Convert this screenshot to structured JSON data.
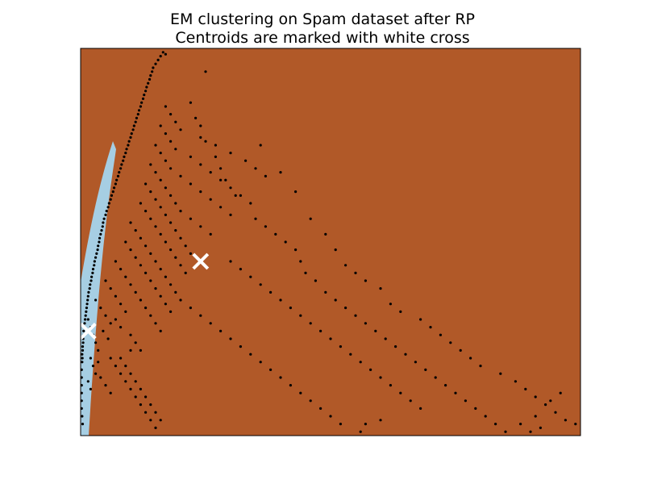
{
  "chart_data": {
    "type": "scatter",
    "title": "EM clustering on Spam dataset after RP",
    "subtitle": "Centroids are marked with white cross",
    "xlabel": "",
    "ylabel": "",
    "xlim": [
      0,
      100
    ],
    "ylim": [
      0,
      100
    ],
    "ticks": "none",
    "background_regions": [
      {
        "cluster": "Cluster 1",
        "color": "#b15928",
        "region": "background"
      },
      {
        "cluster": "Cluster 0",
        "color": "#a6cee3",
        "region": "thin band along left edge"
      }
    ],
    "point_color": "#000000",
    "centroid_color": "#ffffff",
    "centroids": [
      {
        "x": 1.5,
        "y": 27
      },
      {
        "x": 24,
        "y": 45
      }
    ],
    "points": [
      [
        16.5,
        99
      ],
      [
        17,
        98.5
      ],
      [
        15.5,
        97
      ],
      [
        14.5,
        95
      ],
      [
        14,
        93
      ],
      [
        13.5,
        91
      ],
      [
        13,
        89
      ],
      [
        12.5,
        87
      ],
      [
        12,
        85
      ],
      [
        11.5,
        83
      ],
      [
        11,
        81
      ],
      [
        10.5,
        79
      ],
      [
        10,
        77
      ],
      [
        9.5,
        75
      ],
      [
        9,
        73
      ],
      [
        8.5,
        71
      ],
      [
        8,
        69
      ],
      [
        7.5,
        67
      ],
      [
        7,
        65
      ],
      [
        6.5,
        63
      ],
      [
        6,
        61
      ],
      [
        5.5,
        59
      ],
      [
        5,
        57
      ],
      [
        4.5,
        55
      ],
      [
        4.2,
        53
      ],
      [
        3.8,
        51
      ],
      [
        3.5,
        49
      ],
      [
        3.2,
        47
      ],
      [
        2.8,
        45
      ],
      [
        2.5,
        43
      ],
      [
        2.2,
        41
      ],
      [
        1.9,
        39
      ],
      [
        1.6,
        37
      ],
      [
        1.4,
        35
      ],
      [
        1.2,
        33
      ],
      [
        1,
        31
      ],
      [
        0.8,
        29
      ],
      [
        0.6,
        27
      ],
      [
        0.5,
        25
      ],
      [
        0.4,
        23
      ],
      [
        0.3,
        21
      ],
      [
        0.3,
        19
      ],
      [
        0.2,
        17
      ],
      [
        0.2,
        15
      ],
      [
        0.2,
        13
      ],
      [
        0.2,
        11
      ],
      [
        0.2,
        9
      ],
      [
        0.2,
        7
      ],
      [
        0.3,
        5
      ],
      [
        0.4,
        3
      ],
      [
        16,
        98
      ],
      [
        15,
        96
      ],
      [
        14.3,
        94
      ],
      [
        13.8,
        92
      ],
      [
        13.2,
        90
      ],
      [
        12.7,
        88
      ],
      [
        12.2,
        86
      ],
      [
        11.7,
        84
      ],
      [
        11.2,
        82
      ],
      [
        10.7,
        80
      ],
      [
        10.2,
        78
      ],
      [
        9.7,
        76
      ],
      [
        9.2,
        74
      ],
      [
        8.7,
        72
      ],
      [
        8.2,
        70
      ],
      [
        7.7,
        68
      ],
      [
        7.2,
        66
      ],
      [
        6.7,
        64
      ],
      [
        6.2,
        62
      ],
      [
        5.7,
        60
      ],
      [
        5.2,
        58
      ],
      [
        4.7,
        56
      ],
      [
        4.4,
        54
      ],
      [
        4,
        52
      ],
      [
        3.7,
        50
      ],
      [
        3.4,
        48
      ],
      [
        3,
        46
      ],
      [
        2.7,
        44
      ],
      [
        2.4,
        42
      ],
      [
        2.1,
        40
      ],
      [
        1.8,
        38
      ],
      [
        1.5,
        36
      ],
      [
        1.3,
        34
      ],
      [
        1.1,
        32
      ],
      [
        0.9,
        30
      ],
      [
        0.7,
        28
      ],
      [
        0.6,
        26
      ],
      [
        0.5,
        24
      ],
      [
        0.4,
        22
      ],
      [
        0.35,
        20
      ],
      [
        1.5,
        30
      ],
      [
        2,
        28
      ],
      [
        2.5,
        26
      ],
      [
        3,
        24
      ],
      [
        3.5,
        22
      ],
      [
        2,
        20
      ],
      [
        2.5,
        18
      ],
      [
        3,
        16
      ],
      [
        1.5,
        14
      ],
      [
        2,
        12
      ],
      [
        3,
        35
      ],
      [
        4,
        33
      ],
      [
        5,
        31
      ],
      [
        6,
        29
      ],
      [
        4.5,
        27
      ],
      [
        5.5,
        25
      ],
      [
        3.5,
        19
      ],
      [
        4,
        15
      ],
      [
        5,
        13
      ],
      [
        6,
        11
      ],
      [
        5,
        40
      ],
      [
        6,
        38
      ],
      [
        7,
        36
      ],
      [
        8,
        34
      ],
      [
        9,
        32
      ],
      [
        7,
        30
      ],
      [
        8,
        28
      ],
      [
        10,
        26
      ],
      [
        11,
        24
      ],
      [
        12,
        22
      ],
      [
        7,
        45
      ],
      [
        8,
        43
      ],
      [
        9,
        41
      ],
      [
        10,
        39
      ],
      [
        11,
        37
      ],
      [
        12,
        35
      ],
      [
        13,
        33
      ],
      [
        14,
        31
      ],
      [
        15,
        29
      ],
      [
        16,
        27
      ],
      [
        9,
        50
      ],
      [
        10,
        48
      ],
      [
        11,
        46
      ],
      [
        12,
        44
      ],
      [
        13,
        42
      ],
      [
        14,
        40
      ],
      [
        15,
        38
      ],
      [
        16,
        36
      ],
      [
        17,
        34
      ],
      [
        18,
        32
      ],
      [
        10,
        55
      ],
      [
        11,
        53
      ],
      [
        12,
        51
      ],
      [
        13,
        49
      ],
      [
        14,
        47
      ],
      [
        15,
        45
      ],
      [
        16,
        43
      ],
      [
        17,
        41
      ],
      [
        18,
        39
      ],
      [
        19,
        37
      ],
      [
        12,
        60
      ],
      [
        13,
        58
      ],
      [
        14,
        56
      ],
      [
        15,
        54
      ],
      [
        16,
        52
      ],
      [
        17,
        50
      ],
      [
        18,
        48
      ],
      [
        19,
        46
      ],
      [
        20,
        44
      ],
      [
        21,
        42
      ],
      [
        13,
        65
      ],
      [
        14,
        63
      ],
      [
        15,
        61
      ],
      [
        16,
        59
      ],
      [
        17,
        57
      ],
      [
        18,
        55
      ],
      [
        19,
        53
      ],
      [
        20,
        51
      ],
      [
        21,
        49
      ],
      [
        22,
        47
      ],
      [
        14,
        70
      ],
      [
        15,
        68
      ],
      [
        16,
        66
      ],
      [
        17,
        64
      ],
      [
        18,
        62
      ],
      [
        19,
        60
      ],
      [
        20,
        58
      ],
      [
        22,
        56
      ],
      [
        24,
        54
      ],
      [
        26,
        52
      ],
      [
        15,
        75
      ],
      [
        16,
        73
      ],
      [
        17,
        71
      ],
      [
        18,
        69
      ],
      [
        20,
        67
      ],
      [
        22,
        65
      ],
      [
        24,
        63
      ],
      [
        26,
        61
      ],
      [
        28,
        59
      ],
      [
        30,
        57
      ],
      [
        16,
        80
      ],
      [
        17,
        78
      ],
      [
        18,
        76
      ],
      [
        19,
        74
      ],
      [
        22,
        72
      ],
      [
        24,
        70
      ],
      [
        26,
        68
      ],
      [
        28,
        66
      ],
      [
        30,
        64
      ],
      [
        32,
        62
      ],
      [
        17,
        85
      ],
      [
        18,
        83
      ],
      [
        19,
        81
      ],
      [
        20,
        79
      ],
      [
        24,
        77
      ],
      [
        27,
        75
      ],
      [
        30,
        73
      ],
      [
        33,
        71
      ],
      [
        35,
        69
      ],
      [
        37,
        67
      ],
      [
        25,
        94
      ],
      [
        22,
        86
      ],
      [
        23,
        82
      ],
      [
        24,
        80
      ],
      [
        25,
        76
      ],
      [
        27,
        72
      ],
      [
        28,
        69
      ],
      [
        29,
        66
      ],
      [
        31,
        62
      ],
      [
        34,
        60
      ],
      [
        35,
        56
      ],
      [
        37,
        54
      ],
      [
        39,
        52
      ],
      [
        41,
        50
      ],
      [
        43,
        48
      ],
      [
        44,
        45
      ],
      [
        45,
        42
      ],
      [
        47,
        40
      ],
      [
        49,
        37
      ],
      [
        51,
        35
      ],
      [
        53,
        33
      ],
      [
        55,
        31
      ],
      [
        57,
        29
      ],
      [
        59,
        27
      ],
      [
        61,
        25
      ],
      [
        63,
        23
      ],
      [
        65,
        21
      ],
      [
        67,
        19
      ],
      [
        69,
        17
      ],
      [
        71,
        15
      ],
      [
        73,
        13
      ],
      [
        75,
        11
      ],
      [
        77,
        9
      ],
      [
        79,
        7
      ],
      [
        81,
        5
      ],
      [
        83,
        3
      ],
      [
        85,
        1
      ],
      [
        88,
        3
      ],
      [
        90,
        1
      ],
      [
        92,
        2
      ],
      [
        36,
        75
      ],
      [
        40,
        68
      ],
      [
        43,
        63
      ],
      [
        46,
        56
      ],
      [
        49,
        52
      ],
      [
        51,
        48
      ],
      [
        53,
        44
      ],
      [
        55,
        42
      ],
      [
        57,
        40
      ],
      [
        60,
        38
      ],
      [
        62,
        34
      ],
      [
        64,
        32
      ],
      [
        68,
        30
      ],
      [
        70,
        28
      ],
      [
        72,
        26
      ],
      [
        74,
        24
      ],
      [
        76,
        22
      ],
      [
        78,
        20
      ],
      [
        80,
        18
      ],
      [
        84,
        16
      ],
      [
        87,
        14
      ],
      [
        89,
        12
      ],
      [
        91,
        10
      ],
      [
        93,
        8
      ],
      [
        95,
        6
      ],
      [
        97,
        4
      ],
      [
        99,
        3
      ],
      [
        91,
        5
      ],
      [
        94,
        9
      ],
      [
        96,
        11
      ],
      [
        30,
        45
      ],
      [
        32,
        43
      ],
      [
        34,
        41
      ],
      [
        36,
        39
      ],
      [
        38,
        37
      ],
      [
        40,
        35
      ],
      [
        42,
        33
      ],
      [
        44,
        31
      ],
      [
        46,
        29
      ],
      [
        48,
        27
      ],
      [
        50,
        25
      ],
      [
        52,
        23
      ],
      [
        54,
        21
      ],
      [
        56,
        19
      ],
      [
        58,
        17
      ],
      [
        60,
        15
      ],
      [
        62,
        13
      ],
      [
        64,
        11
      ],
      [
        66,
        9
      ],
      [
        68,
        7
      ],
      [
        20,
        35
      ],
      [
        22,
        33
      ],
      [
        24,
        31
      ],
      [
        26,
        29
      ],
      [
        28,
        27
      ],
      [
        30,
        25
      ],
      [
        32,
        23
      ],
      [
        34,
        21
      ],
      [
        36,
        19
      ],
      [
        38,
        17
      ],
      [
        40,
        15
      ],
      [
        42,
        13
      ],
      [
        44,
        11
      ],
      [
        46,
        9
      ],
      [
        48,
        7
      ],
      [
        50,
        5
      ],
      [
        52,
        3
      ],
      [
        56,
        1
      ],
      [
        57,
        3
      ],
      [
        60,
        4
      ],
      [
        8,
        20
      ],
      [
        9,
        18
      ],
      [
        10,
        16
      ],
      [
        11,
        14
      ],
      [
        12,
        12
      ],
      [
        13,
        10
      ],
      [
        14,
        8
      ],
      [
        15,
        6
      ],
      [
        16,
        4
      ],
      [
        10,
        22
      ],
      [
        6,
        20
      ],
      [
        7,
        18
      ],
      [
        8,
        16
      ],
      [
        9,
        14
      ],
      [
        10,
        12
      ],
      [
        11,
        10
      ],
      [
        12,
        8
      ],
      [
        13,
        6
      ],
      [
        14,
        4
      ],
      [
        15,
        2
      ]
    ]
  }
}
